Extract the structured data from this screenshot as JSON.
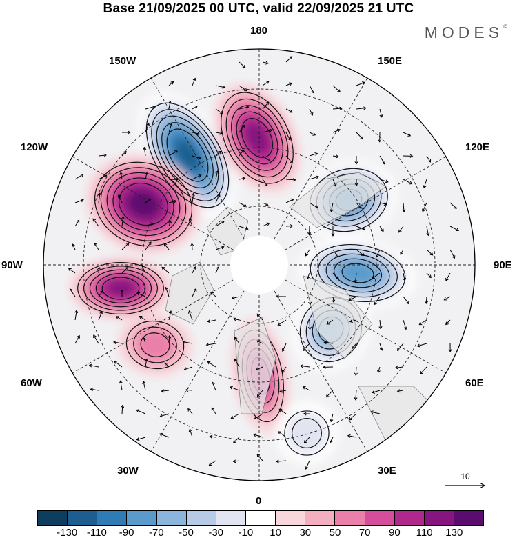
{
  "title": "Base 21/09/2025 00 UTC, valid 22/09/2025 21 UTC",
  "brand": "MODES",
  "brand_mark": "©",
  "longitude_labels": {
    "north": "180",
    "nnw": "150W",
    "nne": "150E",
    "wnw": "120W",
    "ene": "120E",
    "west": "90W",
    "east": "90E",
    "wsw": "60W",
    "ese": "60E",
    "ssw": "30W",
    "sse": "30E",
    "south": "0"
  },
  "reference_vector": "10",
  "colorbar": {
    "colors": [
      "#0e3d5e",
      "#1b5e8f",
      "#2f7bb5",
      "#5a9bcc",
      "#8cb5dc",
      "#b8cbe6",
      "#e2e4f1",
      "#ffffff",
      "#f8d7dc",
      "#f3aec0",
      "#ea7fa9",
      "#d64d9c",
      "#b0288c",
      "#86157f",
      "#5a0d6e"
    ],
    "labels": [
      "-130",
      "-110",
      "-90",
      "-70",
      "-50",
      "-30",
      "-10",
      "10",
      "30",
      "50",
      "70",
      "90",
      "110",
      "130"
    ]
  },
  "anomaly_centers": [
    {
      "name": "negative-center-1",
      "value": -130
    },
    {
      "name": "positive-center-1",
      "value": 110
    },
    {
      "name": "positive-center-2",
      "value": 130
    },
    {
      "name": "negative-center-2",
      "value": -90
    },
    {
      "name": "positive-center-3",
      "value": 110
    },
    {
      "name": "negative-center-3",
      "value": -90
    },
    {
      "name": "negative-center-4",
      "value": -70
    },
    {
      "name": "positive-center-4",
      "value": 70
    },
    {
      "name": "positive-center-5",
      "value": 50
    },
    {
      "name": "negative-center-5",
      "value": -30
    }
  ]
}
